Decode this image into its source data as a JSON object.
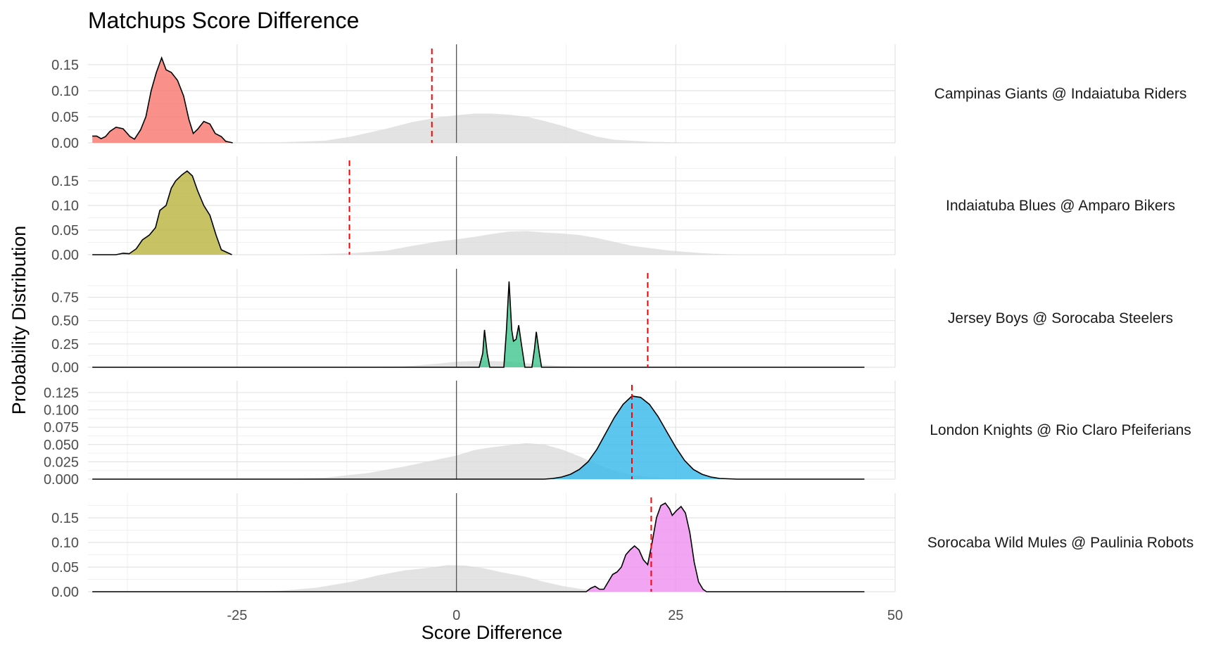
{
  "chart_data": {
    "type": "area",
    "title": "Matchups Score Difference",
    "xlabel": "Score Difference",
    "ylabel": "Probability Distribution",
    "xlim": [
      -42,
      50
    ],
    "x_ticks": [
      -25,
      0,
      25,
      50
    ],
    "grid": true,
    "reference_line_x": 0,
    "panels": [
      {
        "label": "Campinas Giants @ Indaiatuba Riders",
        "color": "#F8766D",
        "ylim": [
          0,
          0.17
        ],
        "y_ticks": [
          0.0,
          0.05,
          0.1,
          0.15
        ],
        "y_tick_labels": [
          "0.00",
          "0.05",
          "0.10",
          "0.15"
        ],
        "red_line_x": -2.8,
        "density": [
          [
            -41.5,
            0.013
          ],
          [
            -41,
            0.013
          ],
          [
            -40.5,
            0.008
          ],
          [
            -40,
            0.012
          ],
          [
            -39.5,
            0.022
          ],
          [
            -38.8,
            0.03
          ],
          [
            -38,
            0.027
          ],
          [
            -37.2,
            0.012
          ],
          [
            -36.7,
            0.007
          ],
          [
            -36,
            0.025
          ],
          [
            -35.4,
            0.05
          ],
          [
            -34.8,
            0.1
          ],
          [
            -34.2,
            0.135
          ],
          [
            -33.6,
            0.163
          ],
          [
            -33.1,
            0.14
          ],
          [
            -32.5,
            0.135
          ],
          [
            -31.8,
            0.12
          ],
          [
            -31.1,
            0.09
          ],
          [
            -30.5,
            0.045
          ],
          [
            -30,
            0.018
          ],
          [
            -29.5,
            0.026
          ],
          [
            -28.8,
            0.041
          ],
          [
            -28.1,
            0.036
          ],
          [
            -27.5,
            0.018
          ],
          [
            -26.8,
            0.012
          ],
          [
            -26.3,
            0.003
          ],
          [
            -25.5,
            0
          ]
        ],
        "background": [
          [
            -41.5,
            0
          ],
          [
            -24,
            0
          ],
          [
            -20,
            0.001
          ],
          [
            -15,
            0.004
          ],
          [
            -12,
            0.012
          ],
          [
            -8,
            0.027
          ],
          [
            -5,
            0.04
          ],
          [
            -2,
            0.049
          ],
          [
            0,
            0.053
          ],
          [
            2,
            0.056
          ],
          [
            4,
            0.056
          ],
          [
            6,
            0.054
          ],
          [
            8,
            0.05
          ],
          [
            10,
            0.042
          ],
          [
            12,
            0.033
          ],
          [
            14,
            0.022
          ],
          [
            16,
            0.012
          ],
          [
            18,
            0.006
          ],
          [
            22,
            0.002
          ],
          [
            28,
            0
          ],
          [
            46.5,
            0
          ]
        ]
      },
      {
        "label": "Indaiatuba Blues @ Amparo Bikers",
        "color": "#B9B33D",
        "ylim": [
          0,
          0.18
        ],
        "y_ticks": [
          0.0,
          0.05,
          0.1,
          0.15
        ],
        "y_tick_labels": [
          "0.00",
          "0.05",
          "0.10",
          "0.15"
        ],
        "red_line_x": -12.2,
        "density": [
          [
            -41.5,
            0
          ],
          [
            -38.8,
            0
          ],
          [
            -38,
            0.003
          ],
          [
            -37.3,
            0.002
          ],
          [
            -36.5,
            0.012
          ],
          [
            -35.8,
            0.03
          ],
          [
            -35,
            0.04
          ],
          [
            -34.3,
            0.055
          ],
          [
            -33.8,
            0.09
          ],
          [
            -33.1,
            0.1
          ],
          [
            -32.5,
            0.135
          ],
          [
            -32,
            0.15
          ],
          [
            -31.3,
            0.162
          ],
          [
            -30.7,
            0.17
          ],
          [
            -30.1,
            0.16
          ],
          [
            -29.5,
            0.13
          ],
          [
            -28.8,
            0.1
          ],
          [
            -28.1,
            0.08
          ],
          [
            -27.4,
            0.04
          ],
          [
            -26.8,
            0.01
          ],
          [
            -26.2,
            0.005
          ],
          [
            -25.6,
            0
          ]
        ],
        "background": [
          [
            -41.5,
            0
          ],
          [
            -18,
            0
          ],
          [
            -12,
            0.003
          ],
          [
            -8,
            0.008
          ],
          [
            -5,
            0.018
          ],
          [
            -2,
            0.027
          ],
          [
            0,
            0.031
          ],
          [
            2,
            0.036
          ],
          [
            4,
            0.042
          ],
          [
            6,
            0.047
          ],
          [
            8,
            0.048
          ],
          [
            10,
            0.045
          ],
          [
            12,
            0.043
          ],
          [
            14,
            0.04
          ],
          [
            16,
            0.034
          ],
          [
            18,
            0.026
          ],
          [
            20,
            0.018
          ],
          [
            24,
            0.009
          ],
          [
            28,
            0.003
          ],
          [
            32,
            0
          ],
          [
            46.5,
            0
          ]
        ]
      },
      {
        "label": "Jersey Boys @ Sorocaba Steelers",
        "color": "#3FC58E",
        "ylim": [
          0,
          0.95
        ],
        "y_ticks": [
          0.0,
          0.25,
          0.5,
          0.75
        ],
        "y_tick_labels": [
          "0.00",
          "0.25",
          "0.50",
          "0.75"
        ],
        "red_line_x": 21.8,
        "density": [
          [
            -41.5,
            0
          ],
          [
            2.6,
            0
          ],
          [
            3,
            0.15
          ],
          [
            3.2,
            0.4
          ],
          [
            3.5,
            0.15
          ],
          [
            3.8,
            0
          ],
          [
            5.4,
            0
          ],
          [
            5.7,
            0.4
          ],
          [
            6.0,
            0.92
          ],
          [
            6.3,
            0.4
          ],
          [
            6.5,
            0.28
          ],
          [
            6.8,
            0.3
          ],
          [
            7.1,
            0.45
          ],
          [
            7.4,
            0.25
          ],
          [
            7.8,
            0
          ],
          [
            8.6,
            0
          ],
          [
            8.9,
            0.2
          ],
          [
            9.1,
            0.38
          ],
          [
            9.4,
            0.18
          ],
          [
            9.7,
            0
          ],
          [
            46.5,
            0
          ]
        ],
        "background": [
          [
            -41.5,
            0
          ],
          [
            -12,
            0
          ],
          [
            -6,
            0.01
          ],
          [
            -2,
            0.04
          ],
          [
            0,
            0.06
          ],
          [
            3,
            0.07
          ],
          [
            6,
            0.06
          ],
          [
            9,
            0.035
          ],
          [
            12,
            0.012
          ],
          [
            16,
            0
          ],
          [
            46.5,
            0
          ]
        ]
      },
      {
        "label": "London Knights @ Rio Claro Pfeiferians",
        "color": "#35B8EB",
        "ylim": [
          0,
          0.128
        ],
        "y_ticks": [
          0.0,
          0.025,
          0.05,
          0.075,
          0.1,
          0.125
        ],
        "y_tick_labels": [
          "0.000",
          "0.025",
          "0.050",
          "0.075",
          "0.100",
          "0.125"
        ],
        "red_line_x": 20.0,
        "density": [
          [
            -41.5,
            0
          ],
          [
            10,
            0
          ],
          [
            11,
            0.001
          ],
          [
            12,
            0.003
          ],
          [
            13,
            0.007
          ],
          [
            14,
            0.014
          ],
          [
            15,
            0.025
          ],
          [
            16,
            0.043
          ],
          [
            17,
            0.066
          ],
          [
            18,
            0.089
          ],
          [
            19,
            0.108
          ],
          [
            20,
            0.12
          ],
          [
            21,
            0.118
          ],
          [
            22,
            0.108
          ],
          [
            23,
            0.09
          ],
          [
            24,
            0.068
          ],
          [
            25,
            0.046
          ],
          [
            26,
            0.027
          ],
          [
            27,
            0.014
          ],
          [
            28,
            0.007
          ],
          [
            29,
            0.003
          ],
          [
            30,
            0.001
          ],
          [
            32,
            0
          ],
          [
            46.5,
            0
          ]
        ],
        "background": [
          [
            -41.5,
            0
          ],
          [
            -20,
            0
          ],
          [
            -15,
            0.002
          ],
          [
            -10,
            0.009
          ],
          [
            -6,
            0.018
          ],
          [
            -3,
            0.026
          ],
          [
            0,
            0.034
          ],
          [
            2,
            0.042
          ],
          [
            4,
            0.046
          ],
          [
            6,
            0.049
          ],
          [
            8,
            0.052
          ],
          [
            10,
            0.05
          ],
          [
            12,
            0.043
          ],
          [
            14,
            0.033
          ],
          [
            16,
            0.022
          ],
          [
            18,
            0.012
          ],
          [
            20,
            0.006
          ],
          [
            23,
            0.002
          ],
          [
            26,
            0
          ],
          [
            46.5,
            0
          ]
        ]
      },
      {
        "label": "Sorocaba Wild Mules @ Paulinia Robots",
        "color": "#EF8FEF",
        "ylim": [
          0,
          0.18
        ],
        "y_ticks": [
          0.0,
          0.05,
          0.1,
          0.15
        ],
        "y_tick_labels": [
          "0.00",
          "0.05",
          "0.10",
          "0.15"
        ],
        "red_line_x": 22.2,
        "density": [
          [
            -41.5,
            0
          ],
          [
            14.8,
            0
          ],
          [
            15.3,
            0.007
          ],
          [
            15.8,
            0.011
          ],
          [
            16.3,
            0.005
          ],
          [
            16.8,
            0.005
          ],
          [
            17.3,
            0.02
          ],
          [
            17.8,
            0.035
          ],
          [
            18.3,
            0.04
          ],
          [
            18.8,
            0.05
          ],
          [
            19.3,
            0.075
          ],
          [
            19.8,
            0.085
          ],
          [
            20.3,
            0.093
          ],
          [
            20.8,
            0.085
          ],
          [
            21.3,
            0.065
          ],
          [
            21.8,
            0.055
          ],
          [
            22.3,
            0.1
          ],
          [
            22.8,
            0.15
          ],
          [
            23.3,
            0.175
          ],
          [
            23.8,
            0.18
          ],
          [
            24.3,
            0.168
          ],
          [
            24.6,
            0.155
          ],
          [
            25.1,
            0.165
          ],
          [
            25.6,
            0.173
          ],
          [
            26.1,
            0.16
          ],
          [
            26.6,
            0.12
          ],
          [
            27.1,
            0.06
          ],
          [
            27.6,
            0.02
          ],
          [
            28.1,
            0.005
          ],
          [
            28.5,
            0
          ],
          [
            46.5,
            0
          ]
        ],
        "background": [
          [
            -41.5,
            0
          ],
          [
            -24,
            0
          ],
          [
            -20,
            0.002
          ],
          [
            -16,
            0.008
          ],
          [
            -12,
            0.02
          ],
          [
            -9,
            0.033
          ],
          [
            -6,
            0.043
          ],
          [
            -3,
            0.049
          ],
          [
            -1,
            0.054
          ],
          [
            1,
            0.053
          ],
          [
            3,
            0.048
          ],
          [
            5,
            0.04
          ],
          [
            8,
            0.03
          ],
          [
            10,
            0.02
          ],
          [
            12,
            0.012
          ],
          [
            14,
            0.006
          ],
          [
            16,
            0.002
          ],
          [
            18,
            0
          ],
          [
            46.5,
            0
          ]
        ]
      }
    ]
  }
}
